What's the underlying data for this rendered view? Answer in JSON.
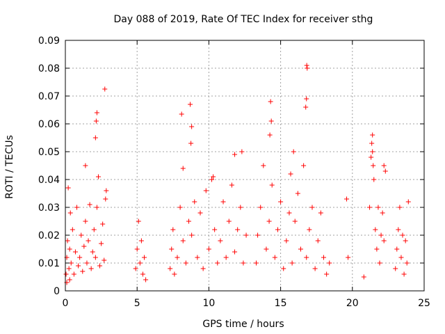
{
  "chart_data": {
    "type": "scatter",
    "title": "Day 088 of 2019, Rate Of TEC Index for receiver sthg",
    "xlabel": "GPS time / hours",
    "ylabel": "ROTI / TECUs",
    "xlim": [
      0,
      25
    ],
    "ylim": [
      0,
      0.09
    ],
    "x_ticks": [
      0,
      5,
      10,
      15,
      20,
      25
    ],
    "x_tick_labels": [
      "0",
      "5",
      "10",
      "15",
      "20",
      "25"
    ],
    "y_ticks": [
      0,
      0.01,
      0.02,
      0.03,
      0.04,
      0.05,
      0.06,
      0.07,
      0.08,
      0.09
    ],
    "y_tick_labels": [
      "0",
      "0.01",
      "0.02",
      "0.03",
      "0.04",
      "0.05",
      "0.06",
      "0.07",
      "0.08",
      "0.09"
    ],
    "grid": true,
    "marker": "+",
    "marker_color": "#ff0000",
    "series": [
      {
        "name": "ROTI",
        "x": [
          0.05,
          0.1,
          0.15,
          0.2,
          0.25,
          0.3,
          0.35,
          0.4,
          0.5,
          0.6,
          0.7,
          0.8,
          0.9,
          1.0,
          1.1,
          1.2,
          1.3,
          1.4,
          1.5,
          1.6,
          1.7,
          1.8,
          1.9,
          2.0,
          2.1,
          2.2,
          2.3,
          2.4,
          2.5,
          2.6,
          2.7,
          2.8,
          2.85,
          2.2,
          2.1,
          2.15,
          1.4,
          0.1,
          0.3,
          2.75,
          4.9,
          5.0,
          5.1,
          5.2,
          5.3,
          5.4,
          5.5,
          5.6,
          7.3,
          7.4,
          7.5,
          7.6,
          7.8,
          8.0,
          8.2,
          8.4,
          8.6,
          8.8,
          9.0,
          9.2,
          9.4,
          9.6,
          9.8,
          10.0,
          10.2,
          10.4,
          10.6,
          10.8,
          11.0,
          11.2,
          11.4,
          11.6,
          11.8,
          12.0,
          12.2,
          12.4,
          12.6,
          8.1,
          8.7,
          8.8,
          8.75,
          8.2,
          11.8,
          12.3,
          10.3,
          13.3,
          13.4,
          13.6,
          13.8,
          14.0,
          14.2,
          14.4,
          14.6,
          14.8,
          15.0,
          15.2,
          15.4,
          15.6,
          15.8,
          16.0,
          16.2,
          16.4,
          16.6,
          16.8,
          17.0,
          17.2,
          17.4,
          17.6,
          17.8,
          18.0,
          18.2,
          18.4,
          14.3,
          14.35,
          14.25,
          16.82,
          16.85,
          16.8,
          16.75,
          15.7,
          15.9,
          19.6,
          19.7,
          20.8,
          21.2,
          21.3,
          21.4,
          21.5,
          21.6,
          21.7,
          21.8,
          21.9,
          22.0,
          22.2,
          22.3,
          21.35,
          21.4,
          21.45,
          22.1,
          22.2,
          23.0,
          23.1,
          23.2,
          23.3,
          23.4,
          23.5,
          23.6,
          23.7,
          23.8,
          23.9
        ],
        "y": [
          0.006,
          0.012,
          0.018,
          0.037,
          0.008,
          0.015,
          0.028,
          0.01,
          0.022,
          0.006,
          0.014,
          0.03,
          0.009,
          0.012,
          0.02,
          0.007,
          0.016,
          0.025,
          0.01,
          0.018,
          0.031,
          0.008,
          0.014,
          0.022,
          0.012,
          0.03,
          0.041,
          0.009,
          0.017,
          0.024,
          0.011,
          0.033,
          0.036,
          0.064,
          0.055,
          0.061,
          0.045,
          0.003,
          0.004,
          0.0725,
          0.008,
          0.015,
          0.025,
          0.01,
          0.018,
          0.006,
          0.012,
          0.004,
          0.008,
          0.015,
          0.022,
          0.006,
          0.012,
          0.03,
          0.018,
          0.01,
          0.025,
          0.02,
          0.032,
          0.012,
          0.028,
          0.008,
          0.036,
          0.015,
          0.04,
          0.022,
          0.01,
          0.018,
          0.032,
          0.012,
          0.025,
          0.038,
          0.014,
          0.022,
          0.03,
          0.01,
          0.02,
          0.0635,
          0.067,
          0.059,
          0.053,
          0.044,
          0.049,
          0.05,
          0.041,
          0.01,
          0.02,
          0.03,
          0.045,
          0.015,
          0.025,
          0.038,
          0.012,
          0.022,
          0.032,
          0.008,
          0.018,
          0.028,
          0.01,
          0.025,
          0.035,
          0.015,
          0.045,
          0.012,
          0.022,
          0.03,
          0.008,
          0.018,
          0.028,
          0.012,
          0.006,
          0.01,
          0.068,
          0.061,
          0.056,
          0.081,
          0.08,
          0.069,
          0.066,
          0.042,
          0.05,
          0.033,
          0.012,
          0.005,
          0.03,
          0.048,
          0.056,
          0.04,
          0.022,
          0.015,
          0.03,
          0.01,
          0.02,
          0.045,
          0.043,
          0.053,
          0.05,
          0.045,
          0.028,
          0.018,
          0.008,
          0.015,
          0.022,
          0.03,
          0.012,
          0.02,
          0.006,
          0.018,
          0.01,
          0.032
        ]
      }
    ]
  }
}
